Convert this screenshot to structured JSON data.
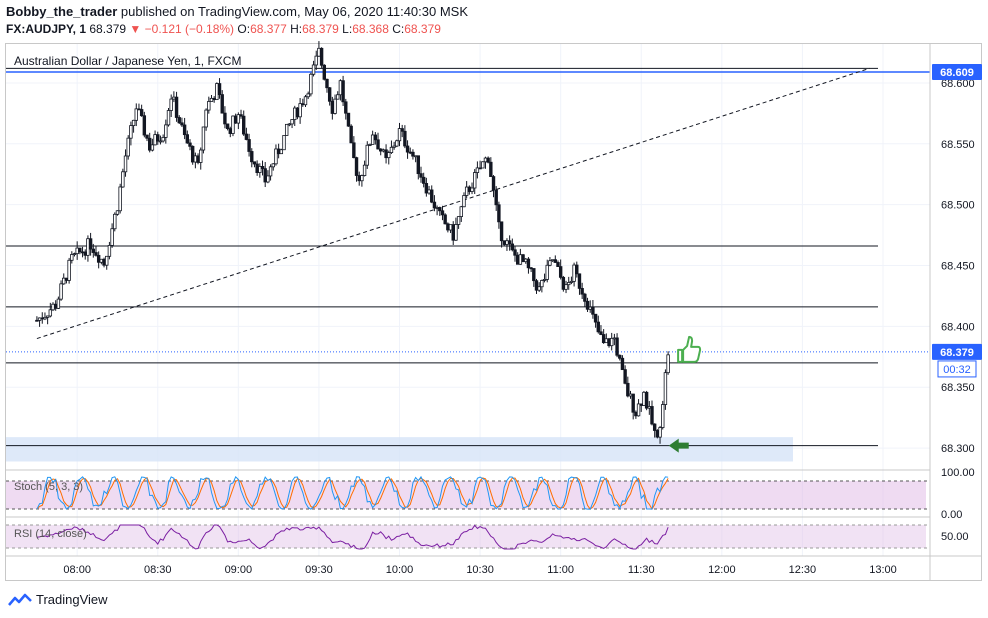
{
  "header": {
    "author": "Bobby_the_trader",
    "published_text": "published on TradingView.com, May 06, 2020 11:40:30 MSK",
    "symbol": "FX:AUDJPY, 1",
    "last": "68.379",
    "change": "−0.121 (−0.18%)",
    "o_label": "O:",
    "o_val": "68.377",
    "h_label": "H:",
    "h_val": "68.379",
    "l_label": "L:",
    "l_val": "68.368",
    "c_label": "C:",
    "c_val": "68.379"
  },
  "pane_title": "Australian Dollar / Japanese Yen, 1, FXCM",
  "price_tags": {
    "top_line": "68.609",
    "last_price": "68.379",
    "countdown": "00:32"
  },
  "indicators": {
    "stoch_label": "Stoch (5, 3, 3)",
    "rsi_label": "RSI (14, close)"
  },
  "footer": {
    "brand": "TradingView"
  },
  "colors": {
    "up_candle": "#ffffff",
    "down_candle": "#131722",
    "wick": "#131722",
    "blue_line": "#2962ff",
    "stoch_k": "#2196f3",
    "stoch_d": "#ff6d00",
    "rsi": "#7b1fa2",
    "band_fill": "#e1bee7",
    "zone_fill": "#d6e4f7",
    "arrow_green": "#2e7d32",
    "thumb_green": "#4caf50"
  },
  "chart_data": {
    "type": "candlestick",
    "symbol": "AUDJPY",
    "timeframe": "1",
    "x_ticks": [
      "08:00",
      "08:30",
      "09:00",
      "09:30",
      "10:00",
      "10:30",
      "11:00",
      "11:30",
      "12:00",
      "12:30",
      "13:00"
    ],
    "y_ticks": [
      "68.600",
      "68.550",
      "68.500",
      "68.450",
      "68.400",
      "68.350",
      "68.300"
    ],
    "y_range": [
      68.282,
      68.632
    ],
    "stoch_ticks": [
      "100.00",
      "0.00"
    ],
    "rsi_ticks": [
      "50.00"
    ],
    "horizontal_levels": [
      68.612,
      68.466,
      68.416,
      68.37,
      68.302
    ],
    "blue_level": 68.609,
    "support_zone": [
      68.289,
      68.309
    ],
    "trendline": {
      "from": [
        "07:45",
        68.39
      ],
      "to": [
        "12:55",
        68.612
      ]
    },
    "close_path": [
      [
        "07:45",
        68.405
      ],
      [
        "07:52",
        68.418
      ],
      [
        "07:58",
        68.455
      ],
      [
        "08:05",
        68.468
      ],
      [
        "08:10",
        68.452
      ],
      [
        "08:15",
        68.5
      ],
      [
        "08:18",
        68.54
      ],
      [
        "08:22",
        68.58
      ],
      [
        "08:27",
        68.548
      ],
      [
        "08:32",
        68.56
      ],
      [
        "08:35",
        68.59
      ],
      [
        "08:40",
        68.555
      ],
      [
        "08:45",
        68.53
      ],
      [
        "08:48",
        68.58
      ],
      [
        "08:52",
        68.595
      ],
      [
        "08:56",
        68.56
      ],
      [
        "09:00",
        68.575
      ],
      [
        "09:05",
        68.54
      ],
      [
        "09:10",
        68.52
      ],
      [
        "09:15",
        68.545
      ],
      [
        "09:20",
        68.57
      ],
      [
        "09:25",
        68.59
      ],
      [
        "09:30",
        68.625
      ],
      [
        "09:35",
        68.58
      ],
      [
        "09:38",
        68.6
      ],
      [
        "09:42",
        68.545
      ],
      [
        "09:45",
        68.52
      ],
      [
        "09:50",
        68.56
      ],
      [
        "09:55",
        68.535
      ],
      [
        "10:00",
        68.56
      ],
      [
        "10:05",
        68.54
      ],
      [
        "10:10",
        68.515
      ],
      [
        "10:15",
        68.49
      ],
      [
        "10:20",
        68.475
      ],
      [
        "10:25",
        68.51
      ],
      [
        "10:30",
        68.53
      ],
      [
        "10:33",
        68.54
      ],
      [
        "10:37",
        68.48
      ],
      [
        "10:42",
        68.46
      ],
      [
        "10:47",
        68.45
      ],
      [
        "10:52",
        68.43
      ],
      [
        "10:57",
        68.455
      ],
      [
        "11:02",
        68.43
      ],
      [
        "11:05",
        68.445
      ],
      [
        "11:10",
        68.42
      ],
      [
        "11:13",
        68.4
      ],
      [
        "11:16",
        68.385
      ],
      [
        "11:20",
        68.39
      ],
      [
        "11:24",
        68.35
      ],
      [
        "11:28",
        68.33
      ],
      [
        "11:31",
        68.345
      ],
      [
        "11:34",
        68.32
      ],
      [
        "11:36",
        68.305
      ],
      [
        "11:38",
        68.34
      ],
      [
        "11:40",
        68.379
      ]
    ]
  }
}
